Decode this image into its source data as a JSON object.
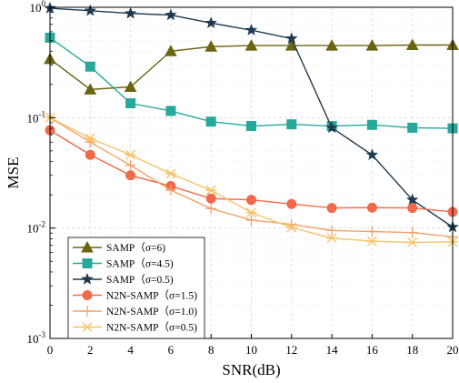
{
  "chart_data": {
    "type": "line",
    "xlabel": "SNR(dB)",
    "ylabel": "MSE",
    "xlim": [
      0,
      20
    ],
    "ylim": [
      0.001,
      1
    ],
    "yscale": "log",
    "grid": true,
    "legend_position": "bottom-left",
    "x_ticks": [
      "0",
      "2",
      "4",
      "6",
      "8",
      "10",
      "12",
      "14",
      "16",
      "18",
      "20"
    ],
    "y_ticks": [
      {
        "base": "10",
        "exp": "-3"
      },
      {
        "base": "10",
        "exp": "-2"
      },
      {
        "base": "10",
        "exp": "-1"
      },
      {
        "base": "10",
        "exp": "0"
      }
    ],
    "x": [
      0,
      2,
      4,
      6,
      8,
      10,
      12,
      14,
      16,
      18,
      20
    ],
    "series": [
      {
        "name": "SAMP（σ=6)",
        "color": "#6b6410",
        "marker": "triangle",
        "values": [
          0.34,
          0.18,
          0.19,
          0.4,
          0.44,
          0.45,
          0.45,
          0.45,
          0.45,
          0.455,
          0.455
        ]
      },
      {
        "name": "SAMP（σ=4.5)",
        "color": "#27a89a",
        "marker": "square",
        "values": [
          0.53,
          0.29,
          0.135,
          0.115,
          0.092,
          0.084,
          0.087,
          0.084,
          0.086,
          0.081,
          0.08
        ]
      },
      {
        "name": "SAMP（σ=0.5)",
        "color": "#1f3a4f",
        "marker": "star",
        "values": [
          0.98,
          0.93,
          0.88,
          0.85,
          0.72,
          0.62,
          0.52,
          0.081,
          0.046,
          0.018,
          0.0102
        ]
      },
      {
        "name": "N2N-SAMP（σ=1.5)",
        "color": "#f0694a",
        "marker": "circle",
        "values": [
          0.077,
          0.046,
          0.03,
          0.024,
          0.0185,
          0.018,
          0.0165,
          0.0152,
          0.0153,
          0.0152,
          0.014
        ]
      },
      {
        "name": "N2N-SAMP（σ=1.0)",
        "color": "#f5a168",
        "marker": "plus",
        "values": [
          0.1,
          0.06,
          0.037,
          0.022,
          0.015,
          0.0118,
          0.0108,
          0.0095,
          0.0093,
          0.0091,
          0.0083
        ]
      },
      {
        "name": "N2N-SAMP（σ=0.5)",
        "color": "#f5c46a",
        "marker": "x",
        "values": [
          0.1,
          0.065,
          0.046,
          0.031,
          0.022,
          0.0138,
          0.0101,
          0.0081,
          0.0076,
          0.0074,
          0.0075
        ]
      }
    ]
  }
}
